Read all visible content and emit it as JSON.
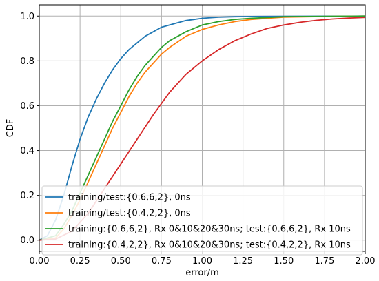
{
  "chart_data": {
    "type": "line",
    "xlabel": "error/m",
    "ylabel": "CDF",
    "xlim": [
      0.0,
      2.0
    ],
    "ylim": [
      -0.05,
      1.05
    ],
    "xticks": [
      0.0,
      0.25,
      0.5,
      0.75,
      1.0,
      1.25,
      1.5,
      1.75,
      2.0
    ],
    "xtick_labels": [
      "0.00",
      "0.25",
      "0.50",
      "0.75",
      "1.00",
      "1.25",
      "1.50",
      "1.75",
      "2.00"
    ],
    "yticks": [
      0.0,
      0.2,
      0.4,
      0.6,
      0.8,
      1.0
    ],
    "ytick_labels": [
      "0.0",
      "0.2",
      "0.4",
      "0.6",
      "0.8",
      "1.0"
    ],
    "grid": true,
    "legend_position": "lower-right",
    "series": [
      {
        "name": "training/test:{0.6,6,2}, 0ns",
        "color": "#1f77b4",
        "x": [
          0,
          0.05,
          0.1,
          0.15,
          0.2,
          0.25,
          0.3,
          0.35,
          0.4,
          0.45,
          0.5,
          0.55,
          0.6,
          0.65,
          0.7,
          0.75,
          0.8,
          0.85,
          0.9,
          0.95,
          1.0,
          1.1,
          1.2,
          1.3,
          1.5,
          2.0
        ],
        "y": [
          0,
          0.02,
          0.09,
          0.2,
          0.33,
          0.45,
          0.55,
          0.63,
          0.7,
          0.76,
          0.81,
          0.85,
          0.88,
          0.91,
          0.93,
          0.95,
          0.96,
          0.97,
          0.98,
          0.985,
          0.99,
          0.995,
          0.997,
          0.998,
          0.999,
          1.0
        ]
      },
      {
        "name": "training/test:{0.4,2,2}, 0ns",
        "color": "#ff7f0e",
        "x": [
          0,
          0.1,
          0.15,
          0.2,
          0.25,
          0.3,
          0.35,
          0.4,
          0.45,
          0.5,
          0.55,
          0.6,
          0.65,
          0.7,
          0.75,
          0.8,
          0.9,
          1.0,
          1.1,
          1.2,
          1.3,
          1.4,
          1.5,
          1.75,
          2.0
        ],
        "y": [
          0,
          0.01,
          0.05,
          0.11,
          0.18,
          0.26,
          0.34,
          0.42,
          0.5,
          0.57,
          0.64,
          0.7,
          0.75,
          0.79,
          0.83,
          0.86,
          0.91,
          0.94,
          0.96,
          0.975,
          0.985,
          0.99,
          0.995,
          0.998,
          1.0
        ]
      },
      {
        "name": "training:{0.6,6,2}, Rx 0&10&20&30ns; test:{0.6,6,2}, Rx 10ns",
        "color": "#2ca02c",
        "x": [
          0,
          0.1,
          0.15,
          0.2,
          0.25,
          0.3,
          0.35,
          0.4,
          0.45,
          0.5,
          0.55,
          0.6,
          0.65,
          0.7,
          0.75,
          0.8,
          0.9,
          1.0,
          1.1,
          1.2,
          1.3,
          1.5,
          2.0
        ],
        "y": [
          0,
          0.02,
          0.07,
          0.13,
          0.21,
          0.29,
          0.37,
          0.45,
          0.53,
          0.6,
          0.67,
          0.73,
          0.78,
          0.82,
          0.86,
          0.89,
          0.93,
          0.96,
          0.975,
          0.985,
          0.99,
          0.997,
          1.0
        ]
      },
      {
        "name": "training:{0.4,2,2}, Rx 0&10&20&30ns; test:{0.4,2,2}, Rx 10ns",
        "color": "#d62728",
        "x": [
          0,
          0.1,
          0.2,
          0.3,
          0.4,
          0.5,
          0.6,
          0.7,
          0.8,
          0.9,
          1.0,
          1.1,
          1.2,
          1.3,
          1.4,
          1.5,
          1.6,
          1.7,
          1.8,
          1.9,
          2.0
        ],
        "y": [
          0,
          0.005,
          0.04,
          0.12,
          0.23,
          0.34,
          0.45,
          0.56,
          0.66,
          0.74,
          0.8,
          0.85,
          0.89,
          0.92,
          0.945,
          0.96,
          0.972,
          0.981,
          0.987,
          0.991,
          0.994
        ]
      }
    ]
  }
}
